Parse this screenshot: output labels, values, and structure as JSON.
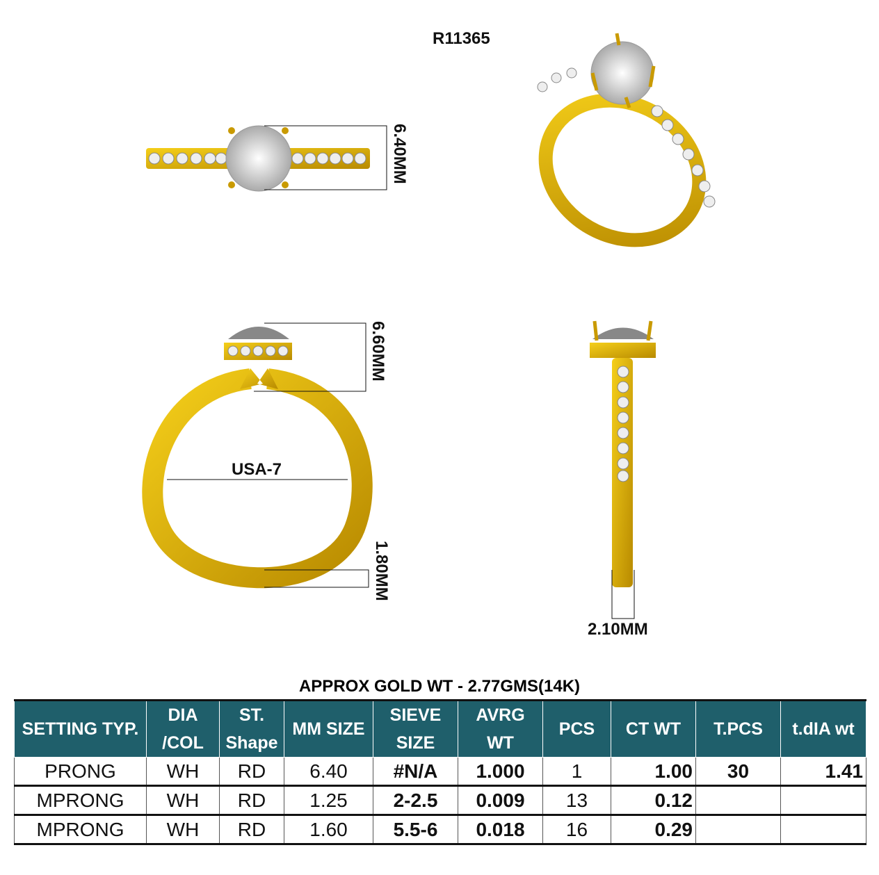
{
  "title": "R11365",
  "dimensions": {
    "top_view": "6.40MM",
    "side_height": "6.60MM",
    "ring_size": "USA-7",
    "shank_width": "1.80MM",
    "band_width": "2.10MM"
  },
  "gold_weight": "APPROX GOLD WT - 2.77GMS(14K)",
  "colors": {
    "header": "#1f5f6b",
    "gold": "#e0b400",
    "diamond": "#e8e8e8"
  },
  "table": {
    "headers": [
      "SETTING TYP.",
      "DIA /COL",
      "ST. Shape",
      "MM SIZE",
      "SIEVE SIZE",
      "AVRG WT",
      "PCS",
      "CT WT",
      "T.PCS",
      "t.dIA wt"
    ],
    "rows": [
      [
        "PRONG",
        "WH",
        "RD",
        "6.40",
        "#N/A",
        "1.000",
        "1",
        "1.00",
        "30",
        "1.41"
      ],
      [
        "MPRONG",
        "WH",
        "RD",
        "1.25",
        "2-2.5",
        "0.009",
        "13",
        "0.12",
        "",
        ""
      ],
      [
        "MPRONG",
        "WH",
        "RD",
        "1.60",
        "5.5-6",
        "0.018",
        "16",
        "0.29",
        "",
        ""
      ]
    ]
  }
}
